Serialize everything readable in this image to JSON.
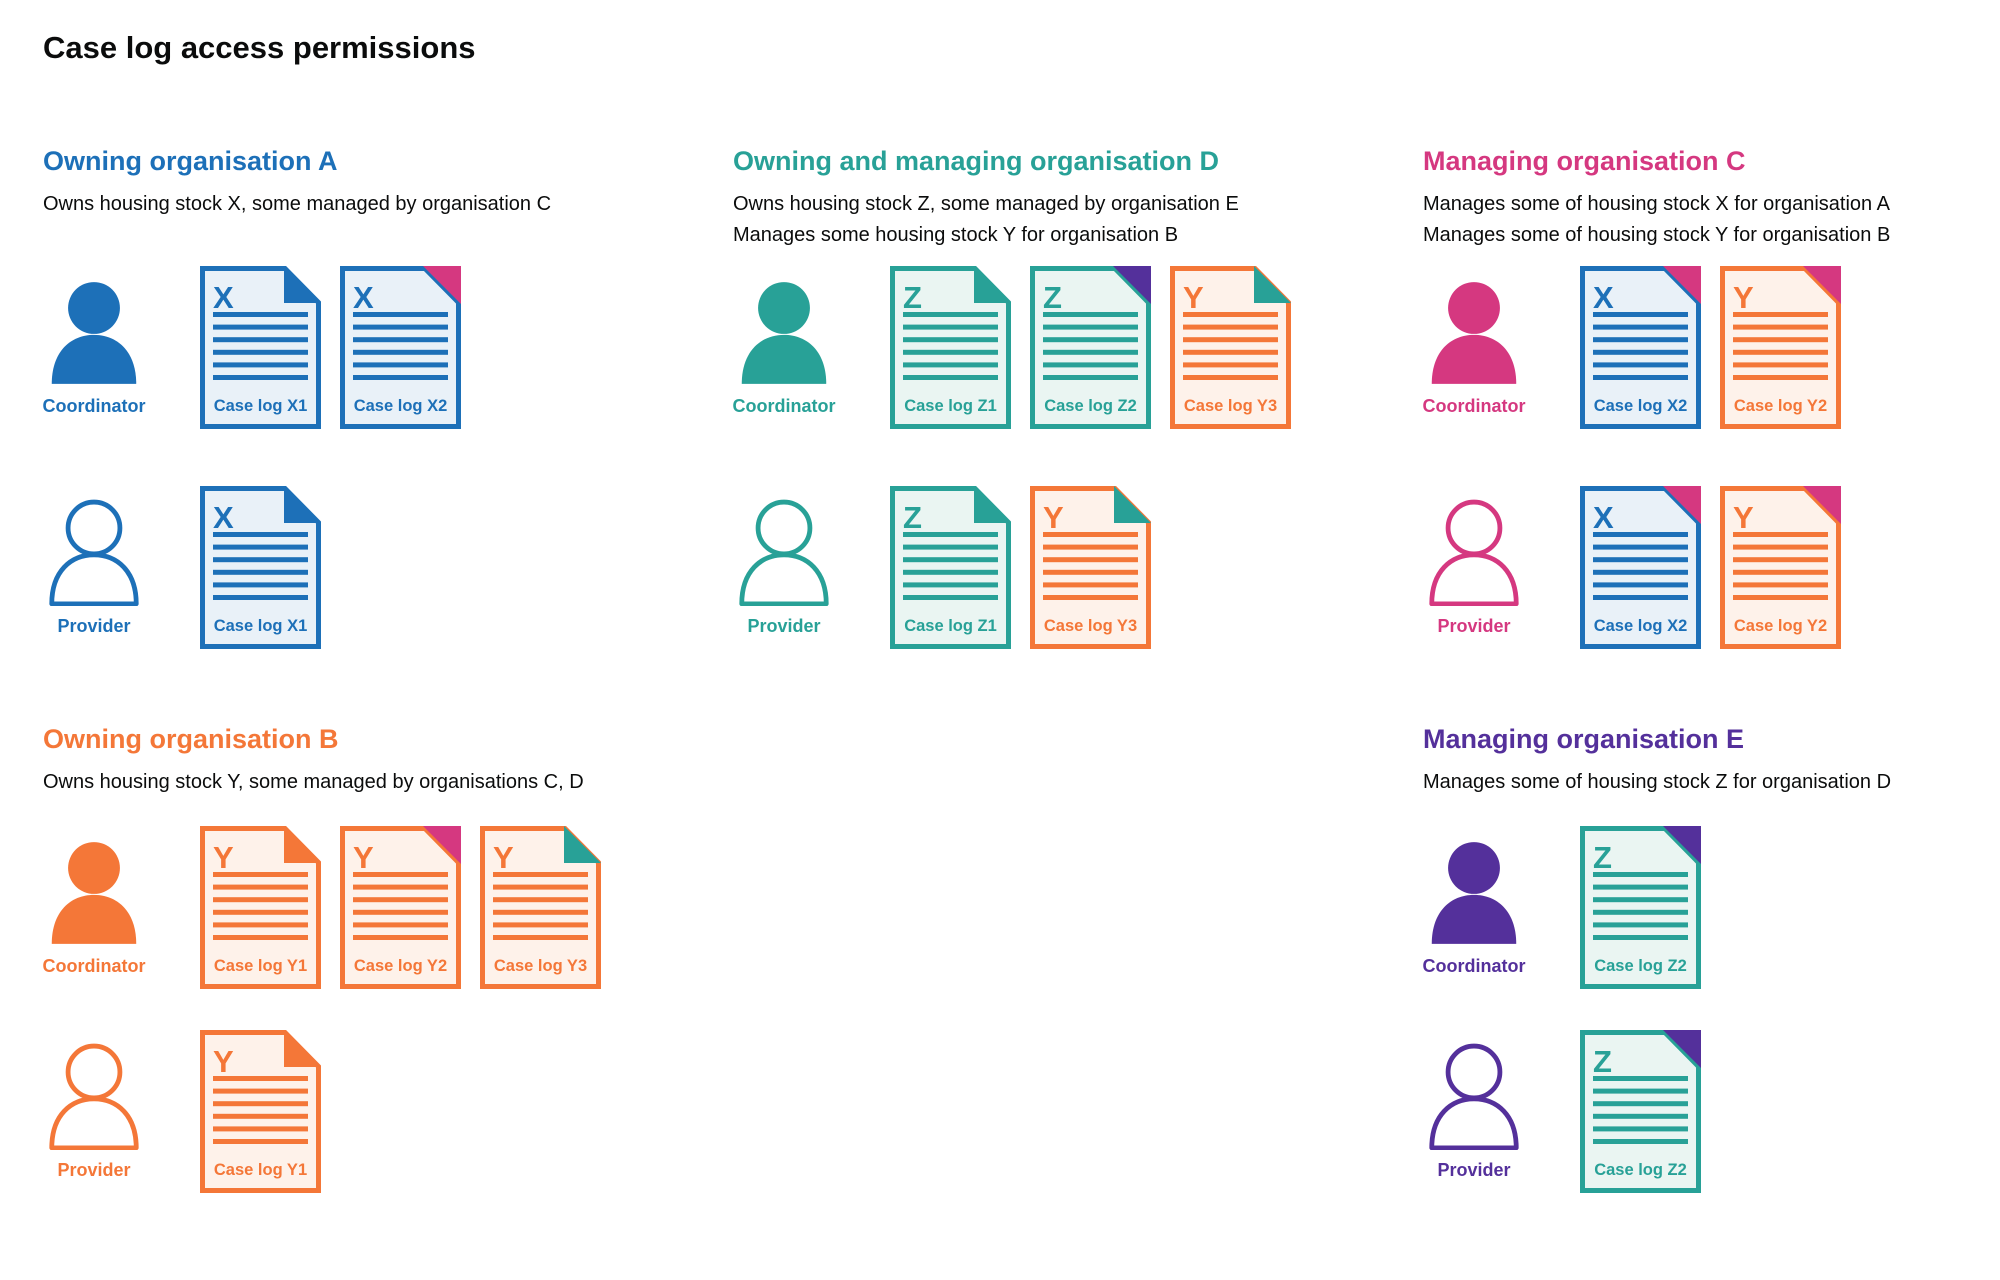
{
  "title": "Case log access permissions",
  "colors": {
    "blue": "#1d70b8",
    "teal": "#28a197",
    "orange": "#f47738",
    "pink": "#d53880",
    "purple": "#54309b",
    "text": "#0b0c0c",
    "tint_blue": "#e9f1f8",
    "tint_teal": "#eaf5f2",
    "tint_orange": "#fef2ea"
  },
  "sections": [
    {
      "id": "owning-organisation-a",
      "column": 1,
      "row": 1,
      "color": "blue",
      "heading": "Owning organisation A",
      "subtitle_lines": [
        "Owns housing stock X, some managed by organisation C"
      ],
      "roles": [
        {
          "label": "Coordinator",
          "person": "filled",
          "docs": [
            {
              "label": "Case log X1",
              "letter": "X",
              "color": "blue",
              "fold_color": "blue",
              "fold_style": "flap"
            },
            {
              "label": "Case log X2",
              "letter": "X",
              "color": "blue",
              "fold_color": "pink",
              "fold_style": "corner"
            }
          ]
        },
        {
          "label": "Provider",
          "person": "outline",
          "docs": [
            {
              "label": "Case log X1",
              "letter": "X",
              "color": "blue",
              "fold_color": "blue",
              "fold_style": "flap"
            }
          ]
        }
      ]
    },
    {
      "id": "owning-and-managing-organisation-d",
      "column": 2,
      "row": 1,
      "color": "teal",
      "heading": "Owning and managing organisation D",
      "subtitle_lines": [
        "Owns housing stock Z, some managed by organisation E",
        "Manages some housing stock Y for organisation B"
      ],
      "roles": [
        {
          "label": "Coordinator",
          "person": "filled",
          "docs": [
            {
              "label": "Case log Z1",
              "letter": "Z",
              "color": "teal",
              "fold_color": "teal",
              "fold_style": "flap"
            },
            {
              "label": "Case log Z2",
              "letter": "Z",
              "color": "teal",
              "fold_color": "purple",
              "fold_style": "corner"
            },
            {
              "label": "Case log Y3",
              "letter": "Y",
              "color": "orange",
              "fold_color": "teal",
              "fold_style": "flap"
            }
          ]
        },
        {
          "label": "Provider",
          "person": "outline",
          "docs": [
            {
              "label": "Case log Z1",
              "letter": "Z",
              "color": "teal",
              "fold_color": "teal",
              "fold_style": "flap"
            },
            {
              "label": "Case log Y3",
              "letter": "Y",
              "color": "orange",
              "fold_color": "teal",
              "fold_style": "flap"
            }
          ]
        }
      ]
    },
    {
      "id": "managing-organisation-c",
      "column": 3,
      "row": 1,
      "color": "pink",
      "heading": "Managing organisation C",
      "subtitle_lines": [
        "Manages some of housing stock X for organisation A",
        "Manages some of housing stock Y for organisation B"
      ],
      "roles": [
        {
          "label": "Coordinator",
          "person": "filled",
          "docs": [
            {
              "label": "Case log X2",
              "letter": "X",
              "color": "blue",
              "fold_color": "pink",
              "fold_style": "corner"
            },
            {
              "label": "Case log Y2",
              "letter": "Y",
              "color": "orange",
              "fold_color": "pink",
              "fold_style": "corner"
            }
          ]
        },
        {
          "label": "Provider",
          "person": "outline",
          "docs": [
            {
              "label": "Case log X2",
              "letter": "X",
              "color": "blue",
              "fold_color": "pink",
              "fold_style": "corner"
            },
            {
              "label": "Case log Y2",
              "letter": "Y",
              "color": "orange",
              "fold_color": "pink",
              "fold_style": "corner"
            }
          ]
        }
      ]
    },
    {
      "id": "owning-organisation-b",
      "column": 1,
      "row": 2,
      "color": "orange",
      "heading": "Owning organisation B",
      "subtitle_lines": [
        "Owns housing stock Y, some managed by organisations C, D"
      ],
      "roles": [
        {
          "label": "Coordinator",
          "person": "filled",
          "docs": [
            {
              "label": "Case log Y1",
              "letter": "Y",
              "color": "orange",
              "fold_color": "orange",
              "fold_style": "flap"
            },
            {
              "label": "Case log Y2",
              "letter": "Y",
              "color": "orange",
              "fold_color": "pink",
              "fold_style": "corner"
            },
            {
              "label": "Case log Y3",
              "letter": "Y",
              "color": "orange",
              "fold_color": "teal",
              "fold_style": "flap"
            }
          ]
        },
        {
          "label": "Provider",
          "person": "outline",
          "docs": [
            {
              "label": "Case log Y1",
              "letter": "Y",
              "color": "orange",
              "fold_color": "orange",
              "fold_style": "flap"
            }
          ]
        }
      ]
    },
    {
      "id": "managing-organisation-e",
      "column": 3,
      "row": 2,
      "color": "purple",
      "heading": "Managing organisation E",
      "subtitle_lines": [
        "Manages some of housing stock Z for organisation D"
      ],
      "roles": [
        {
          "label": "Coordinator",
          "person": "filled",
          "docs": [
            {
              "label": "Case log Z2",
              "letter": "Z",
              "color": "teal",
              "fold_color": "purple",
              "fold_style": "corner"
            }
          ]
        },
        {
          "label": "Provider",
          "person": "outline",
          "docs": [
            {
              "label": "Case log Z2",
              "letter": "Z",
              "color": "teal",
              "fold_color": "purple",
              "fold_style": "corner"
            }
          ]
        }
      ]
    }
  ]
}
